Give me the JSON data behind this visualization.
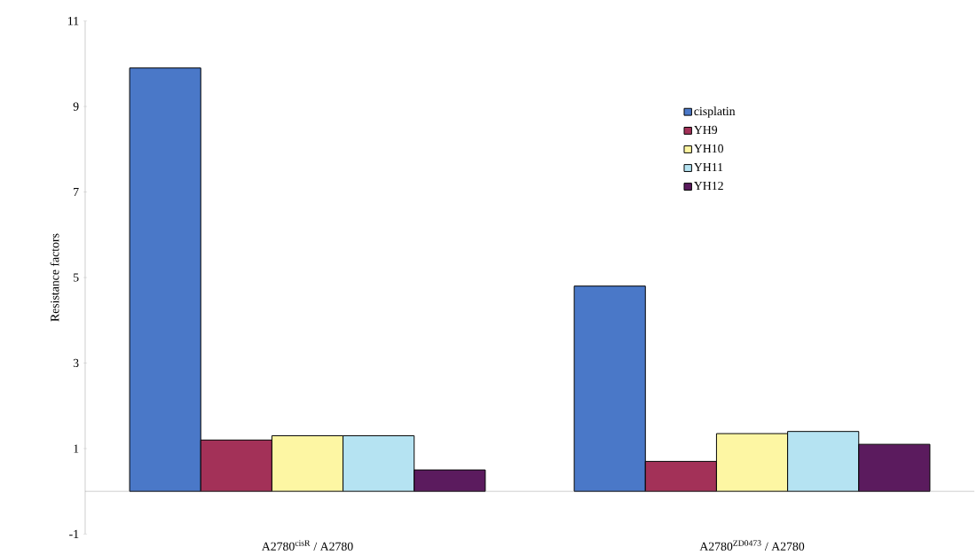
{
  "chart_data": {
    "type": "bar",
    "ylabel": "Resistance factors",
    "categories": [
      "A2780$^{cisR}$ / A2780",
      "A2780$^{ZD0473}$ / A2780"
    ],
    "series": [
      {
        "name": "cisplatin",
        "color": "#4a78c8",
        "values": [
          9.9,
          4.8
        ]
      },
      {
        "name": "YH9",
        "color": "#a33158",
        "values": [
          1.2,
          0.7
        ]
      },
      {
        "name": "YH10",
        "color": "#fdf6a3",
        "values": [
          1.3,
          1.35
        ]
      },
      {
        "name": "YH11",
        "color": "#b5e3f2",
        "values": [
          1.3,
          1.4
        ]
      },
      {
        "name": "YH12",
        "color": "#5b1b5e",
        "values": [
          0.5,
          1.1
        ]
      }
    ],
    "ylim": [
      -1,
      11
    ],
    "yticks": [
      -1,
      1,
      3,
      5,
      7,
      9,
      11
    ],
    "grid": false,
    "legend": "top right"
  }
}
